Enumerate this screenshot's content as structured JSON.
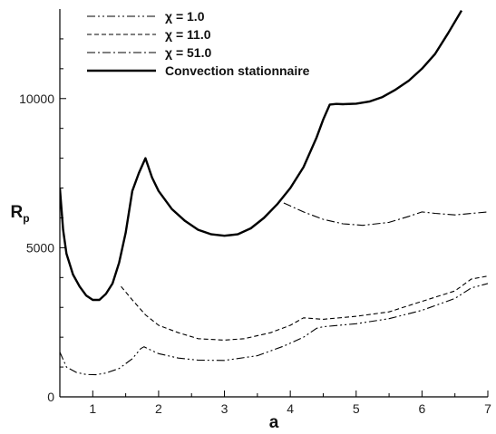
{
  "chart_data": {
    "type": "line",
    "title": "",
    "xlabel": "a",
    "ylabel": "R",
    "ylabel_subscript": "p",
    "xlim": [
      0.5,
      7.0
    ],
    "ylim": [
      0,
      13000
    ],
    "xticks": [
      1,
      2,
      3,
      4,
      5,
      6,
      7
    ],
    "yticks": [
      0,
      5000,
      10000
    ],
    "legend_position": "top-left",
    "series": [
      {
        "name": "χ = 1.0",
        "style": "dash-dot-dot",
        "x": [
          0.5,
          0.6,
          0.75,
          0.9,
          1.05,
          1.2,
          1.4,
          1.6,
          1.73,
          1.78,
          1.85,
          2.0,
          2.3,
          2.6,
          3.0,
          3.5,
          3.9,
          4.2,
          4.4,
          4.5,
          5.0,
          5.5,
          6.0,
          6.5,
          6.75,
          7.0
        ],
        "y": [
          1500,
          1000,
          820,
          750,
          740,
          800,
          950,
          1280,
          1620,
          1680,
          1600,
          1450,
          1300,
          1230,
          1220,
          1380,
          1700,
          2000,
          2300,
          2350,
          2450,
          2620,
          2900,
          3300,
          3650,
          3800
        ]
      },
      {
        "name": "χ = 11.0",
        "style": "dashed",
        "x": [
          1.43,
          1.6,
          1.8,
          2.0,
          2.3,
          2.6,
          3.0,
          3.3,
          3.7,
          4.0,
          4.2,
          4.5,
          5.0,
          5.5,
          6.0,
          6.5,
          6.75,
          7.0
        ],
        "y": [
          3700,
          3250,
          2750,
          2400,
          2150,
          1950,
          1900,
          1950,
          2150,
          2400,
          2650,
          2600,
          2700,
          2850,
          3200,
          3550,
          3950,
          4050
        ]
      },
      {
        "name": "χ = 51.0",
        "style": "dash-dot",
        "x": [
          3.9,
          4.0,
          4.2,
          4.5,
          4.8,
          5.1,
          5.5,
          5.8,
          6.0,
          6.2,
          6.5,
          7.0
        ],
        "y": [
          6500,
          6400,
          6200,
          5950,
          5800,
          5750,
          5850,
          6050,
          6200,
          6150,
          6100,
          6200
        ]
      },
      {
        "name": "Convection stationnaire",
        "style": "solid",
        "x": [
          0.5,
          0.55,
          0.6,
          0.7,
          0.8,
          0.9,
          1.0,
          1.1,
          1.2,
          1.3,
          1.4,
          1.5,
          1.6,
          1.7,
          1.8,
          1.9,
          2.0,
          2.2,
          2.4,
          2.6,
          2.8,
          3.0,
          3.2,
          3.4,
          3.6,
          3.8,
          4.0,
          4.2,
          4.4,
          4.5,
          4.6,
          4.7,
          4.8,
          5.0,
          5.2,
          5.4,
          5.6,
          5.8,
          6.0,
          6.2,
          6.4,
          6.6
        ],
        "y": [
          7000,
          5600,
          4800,
          4100,
          3700,
          3400,
          3250,
          3250,
          3450,
          3800,
          4500,
          5500,
          6900,
          7500,
          8000,
          7350,
          6900,
          6300,
          5900,
          5600,
          5450,
          5400,
          5450,
          5650,
          6000,
          6450,
          7000,
          7700,
          8700,
          9300,
          9800,
          9820,
          9810,
          9830,
          9900,
          10050,
          10300,
          10600,
          11000,
          11500,
          12200,
          12950
        ]
      }
    ]
  }
}
